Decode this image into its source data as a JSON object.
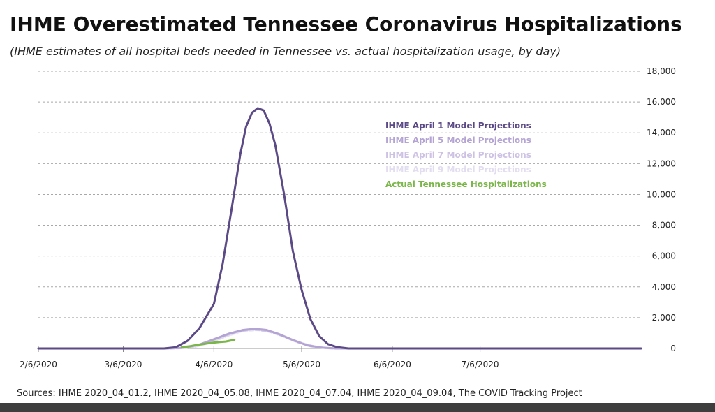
{
  "title": "IHME Overestimated Tennessee Coronavirus Hospitalizations",
  "subtitle": "(IHME estimates of all hospital beds needed in Tennessee vs. actual hospitalization usage, by day)",
  "source": "Sources: IHME 2020_04_01.2,  IHME 2020_04_05.08,  IHME 2020_04_07.04,  IHME 2020_04_09.04,  The COVID Tracking Project",
  "chart_data": {
    "type": "line",
    "title": "IHME Overestimated Tennessee Coronavirus Hospitalizations",
    "subtitle": "(IHME estimates of all hospital beds needed in Tennessee vs. actual hospitalization usage, by day)",
    "xlabel": "",
    "ylabel": "",
    "x_ticks": [
      "2/6/2020",
      "3/6/2020",
      "4/6/2020",
      "5/6/2020",
      "6/6/2020",
      "7/6/2020"
    ],
    "xlim": [
      "2020-02-06",
      "2020-08-30"
    ],
    "y_ticks": [
      "0",
      "2,000",
      "4,000",
      "6,000",
      "8,000",
      "10,000",
      "12,000",
      "14,000",
      "16,000",
      "18,000"
    ],
    "ylim": [
      0,
      18000
    ],
    "y_axis_side": "right",
    "grid": "horizontal dashed",
    "legend": "center-right",
    "series": [
      {
        "name": "IHME April 1 Model Projections",
        "color": "#5b4a86",
        "points": [
          [
            "2020-02-06",
            0
          ],
          [
            "2020-03-06",
            0
          ],
          [
            "2020-03-20",
            0
          ],
          [
            "2020-03-24",
            80
          ],
          [
            "2020-03-28",
            500
          ],
          [
            "2020-04-01",
            1300
          ],
          [
            "2020-04-06",
            2900
          ],
          [
            "2020-04-09",
            5500
          ],
          [
            "2020-04-12",
            9000
          ],
          [
            "2020-04-15",
            12600
          ],
          [
            "2020-04-17",
            14400
          ],
          [
            "2020-04-19",
            15300
          ],
          [
            "2020-04-21",
            15600
          ],
          [
            "2020-04-23",
            15450
          ],
          [
            "2020-04-25",
            14600
          ],
          [
            "2020-04-27",
            13200
          ],
          [
            "2020-04-30",
            10000
          ],
          [
            "2020-05-03",
            6300
          ],
          [
            "2020-05-06",
            3800
          ],
          [
            "2020-05-09",
            1900
          ],
          [
            "2020-05-12",
            800
          ],
          [
            "2020-05-15",
            280
          ],
          [
            "2020-05-18",
            90
          ],
          [
            "2020-05-22",
            0
          ],
          [
            "2020-06-06",
            0
          ],
          [
            "2020-08-30",
            0
          ]
        ]
      },
      {
        "name": "IHME April 5 Model Projections",
        "color": "#b4a4d4",
        "points": [
          [
            "2020-02-06",
            0
          ],
          [
            "2020-03-20",
            0
          ],
          [
            "2020-03-26",
            40
          ],
          [
            "2020-04-01",
            250
          ],
          [
            "2020-04-06",
            600
          ],
          [
            "2020-04-11",
            950
          ],
          [
            "2020-04-16",
            1200
          ],
          [
            "2020-04-20",
            1280
          ],
          [
            "2020-04-24",
            1200
          ],
          [
            "2020-04-28",
            950
          ],
          [
            "2020-05-03",
            550
          ],
          [
            "2020-05-08",
            200
          ],
          [
            "2020-05-13",
            50
          ],
          [
            "2020-05-18",
            0
          ],
          [
            "2020-08-30",
            0
          ]
        ]
      },
      {
        "name": "IHME April 7 Model Projections",
        "color": "#cdc2e3",
        "points": [
          [
            "2020-02-06",
            0
          ],
          [
            "2020-03-22",
            0
          ],
          [
            "2020-03-28",
            60
          ],
          [
            "2020-04-03",
            350
          ],
          [
            "2020-04-09",
            800
          ],
          [
            "2020-04-14",
            1100
          ],
          [
            "2020-04-19",
            1250
          ],
          [
            "2020-04-24",
            1150
          ],
          [
            "2020-04-29",
            850
          ],
          [
            "2020-05-04",
            450
          ],
          [
            "2020-05-09",
            150
          ],
          [
            "2020-05-14",
            30
          ],
          [
            "2020-05-19",
            0
          ],
          [
            "2020-08-30",
            0
          ]
        ]
      },
      {
        "name": "IHME April 9 Model Projections",
        "color": "#e3ddf0",
        "points": [
          [
            "2020-02-06",
            0
          ],
          [
            "2020-03-24",
            0
          ],
          [
            "2020-03-30",
            80
          ],
          [
            "2020-04-05",
            400
          ],
          [
            "2020-04-11",
            850
          ],
          [
            "2020-04-16",
            1150
          ],
          [
            "2020-04-21",
            1200
          ],
          [
            "2020-04-26",
            1050
          ],
          [
            "2020-05-01",
            700
          ],
          [
            "2020-05-06",
            350
          ],
          [
            "2020-05-11",
            100
          ],
          [
            "2020-05-16",
            0
          ],
          [
            "2020-08-30",
            0
          ]
        ]
      },
      {
        "name": "Actual Tennessee Hospitalizations",
        "color": "#7ab648",
        "points": [
          [
            "2020-03-26",
            80
          ],
          [
            "2020-03-29",
            150
          ],
          [
            "2020-04-01",
            250
          ],
          [
            "2020-04-04",
            330
          ],
          [
            "2020-04-06",
            380
          ],
          [
            "2020-04-08",
            420
          ],
          [
            "2020-04-10",
            450
          ],
          [
            "2020-04-13",
            560
          ]
        ]
      }
    ]
  }
}
